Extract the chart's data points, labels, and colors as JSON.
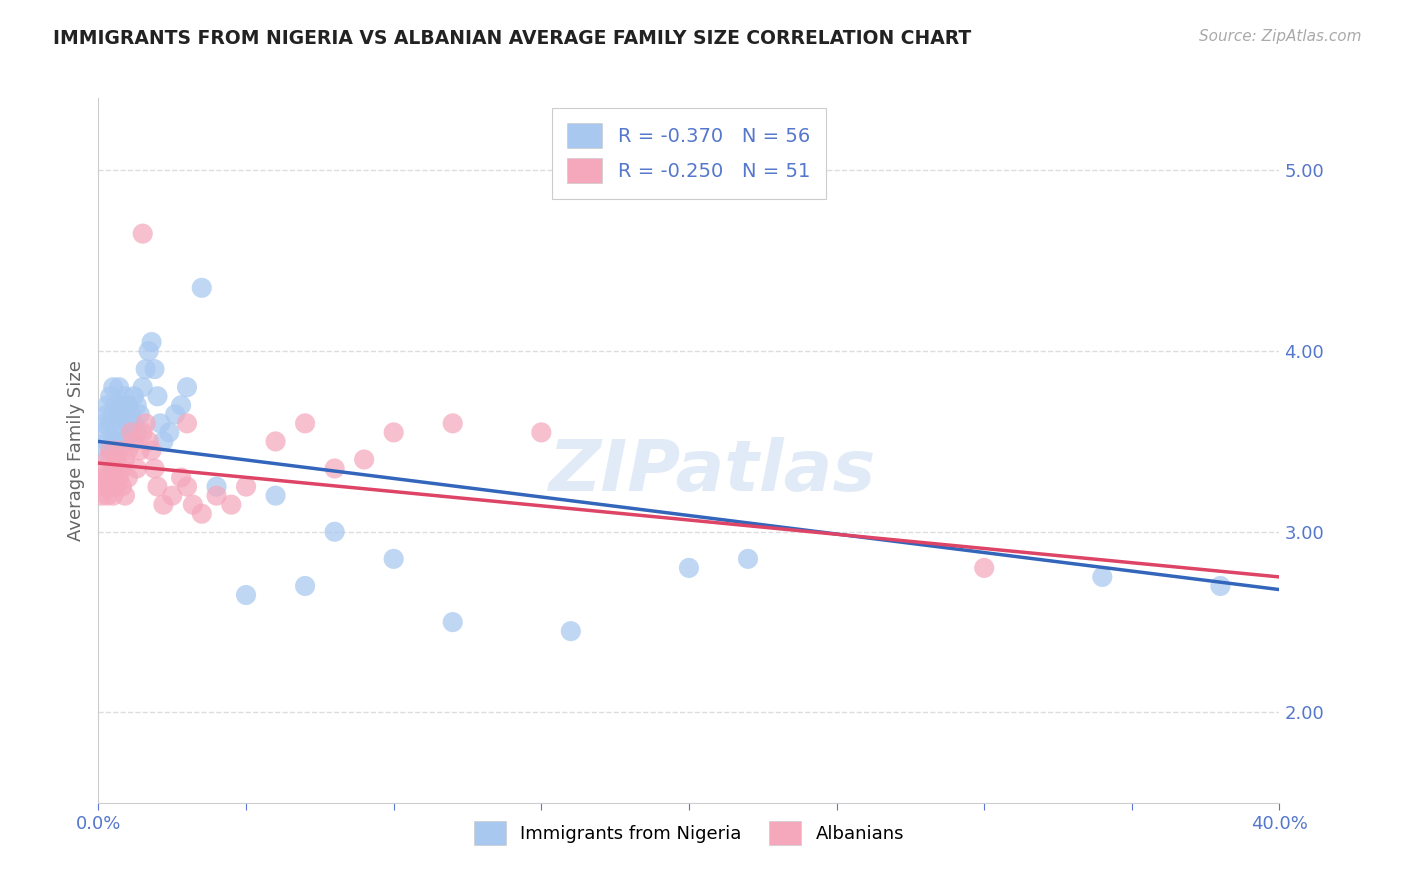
{
  "title": "IMMIGRANTS FROM NIGERIA VS ALBANIAN AVERAGE FAMILY SIZE CORRELATION CHART",
  "source": "Source: ZipAtlas.com",
  "ylabel": "Average Family Size",
  "xlim": [
    0.0,
    0.4
  ],
  "ylim": [
    1.5,
    5.4
  ],
  "yticks": [
    2.0,
    3.0,
    4.0,
    5.0
  ],
  "xticks": [
    0.0,
    0.05,
    0.1,
    0.15,
    0.2,
    0.25,
    0.3,
    0.35,
    0.4
  ],
  "xtick_labels": [
    "0.0%",
    "",
    "",
    "",
    "",
    "",
    "",
    "",
    "40.0%"
  ],
  "nigeria_color": "#a8c8f0",
  "albanian_color": "#f5a8bc",
  "nigeria_line_color": "#3366bb",
  "albanian_line_color": "#dd4466",
  "legend_nigeria_r": "-0.370",
  "legend_nigeria_n": "56",
  "legend_albanian_r": "-0.250",
  "legend_albanian_n": "51",
  "watermark": "ZIPatlas",
  "nigeria_x": [
    0.001,
    0.002,
    0.002,
    0.003,
    0.003,
    0.003,
    0.004,
    0.004,
    0.004,
    0.005,
    0.005,
    0.005,
    0.006,
    0.006,
    0.007,
    0.007,
    0.007,
    0.008,
    0.008,
    0.009,
    0.009,
    0.009,
    0.01,
    0.01,
    0.011,
    0.011,
    0.012,
    0.012,
    0.013,
    0.013,
    0.014,
    0.015,
    0.016,
    0.017,
    0.018,
    0.019,
    0.02,
    0.021,
    0.022,
    0.024,
    0.026,
    0.028,
    0.03,
    0.035,
    0.04,
    0.05,
    0.06,
    0.07,
    0.08,
    0.1,
    0.12,
    0.16,
    0.2,
    0.22,
    0.34,
    0.38
  ],
  "nigeria_y": [
    3.55,
    3.6,
    3.45,
    3.65,
    3.5,
    3.7,
    3.75,
    3.6,
    3.45,
    3.8,
    3.65,
    3.5,
    3.7,
    3.55,
    3.8,
    3.65,
    3.5,
    3.7,
    3.55,
    3.65,
    3.75,
    3.5,
    3.6,
    3.7,
    3.55,
    3.65,
    3.75,
    3.6,
    3.7,
    3.55,
    3.65,
    3.8,
    3.9,
    4.0,
    4.05,
    3.9,
    3.75,
    3.6,
    3.5,
    3.55,
    3.65,
    3.7,
    3.8,
    4.35,
    3.25,
    2.65,
    3.2,
    2.7,
    3.0,
    2.85,
    2.5,
    2.45,
    2.8,
    2.85,
    2.75,
    2.7
  ],
  "albanian_x": [
    0.001,
    0.001,
    0.002,
    0.002,
    0.003,
    0.003,
    0.003,
    0.004,
    0.004,
    0.005,
    0.005,
    0.005,
    0.006,
    0.006,
    0.007,
    0.007,
    0.008,
    0.008,
    0.009,
    0.009,
    0.01,
    0.01,
    0.011,
    0.012,
    0.013,
    0.014,
    0.015,
    0.016,
    0.017,
    0.018,
    0.019,
    0.02,
    0.022,
    0.025,
    0.028,
    0.03,
    0.032,
    0.035,
    0.04,
    0.045,
    0.05,
    0.06,
    0.07,
    0.08,
    0.09,
    0.1,
    0.12,
    0.15,
    0.3,
    0.03,
    0.015
  ],
  "albanian_y": [
    3.3,
    3.2,
    3.35,
    3.25,
    3.4,
    3.3,
    3.2,
    3.45,
    3.25,
    3.3,
    3.2,
    3.35,
    3.4,
    3.25,
    3.45,
    3.3,
    3.35,
    3.25,
    3.4,
    3.2,
    3.45,
    3.3,
    3.55,
    3.5,
    3.35,
    3.45,
    3.55,
    3.6,
    3.5,
    3.45,
    3.35,
    3.25,
    3.15,
    3.2,
    3.3,
    3.25,
    3.15,
    3.1,
    3.2,
    3.15,
    3.25,
    3.5,
    3.6,
    3.35,
    3.4,
    3.55,
    3.6,
    3.55,
    2.8,
    3.6,
    4.65
  ],
  "background_color": "#ffffff",
  "grid_color": "#dddddd",
  "title_color": "#222222",
  "tick_color": "#5577cc",
  "figsize": [
    14.06,
    8.92
  ],
  "dpi": 100,
  "trendline_blue_x0": 0.0,
  "trendline_blue_y0": 3.5,
  "trendline_blue_x1": 0.4,
  "trendline_blue_y1": 2.68,
  "trendline_pink_x0": 0.0,
  "trendline_pink_y0": 3.38,
  "trendline_pink_x1": 0.4,
  "trendline_pink_y1": 2.75
}
